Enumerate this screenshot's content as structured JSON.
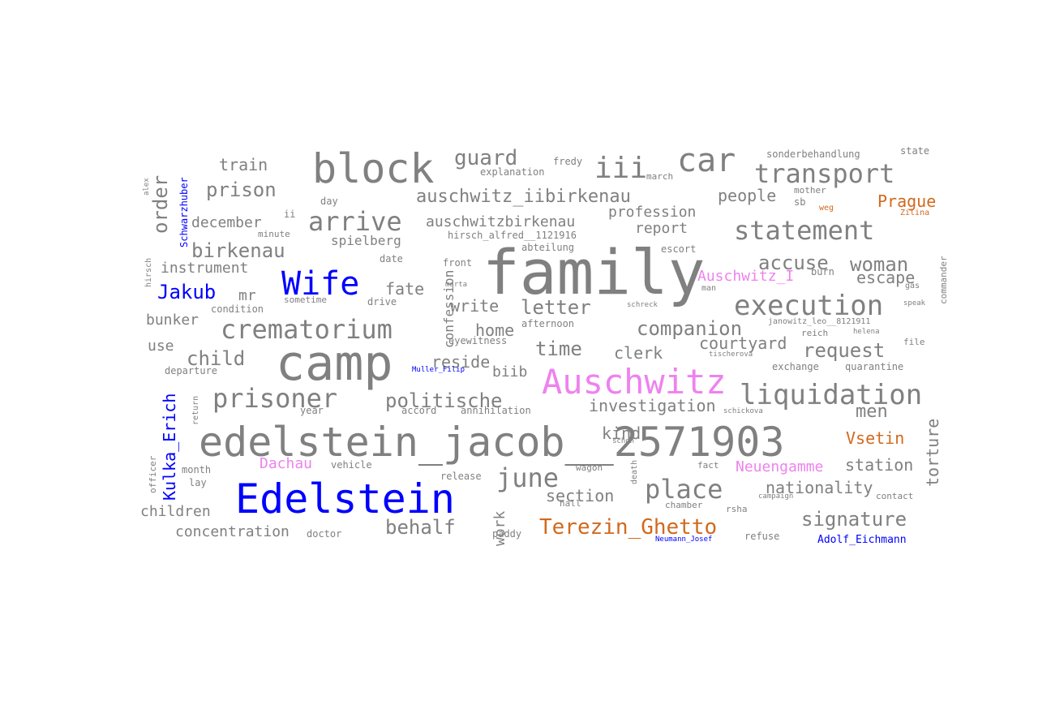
{
  "colors": {
    "gray": "#808080",
    "blue": "#0000ff",
    "magenta": "#ee82ee",
    "orange": "#d2691e"
  },
  "words": [
    {
      "text": "family",
      "color": "gray"
    },
    {
      "text": "camp",
      "color": "gray"
    },
    {
      "text": "edelstein_jacob__2571903",
      "color": "gray"
    },
    {
      "text": "Edelstein",
      "color": "blue"
    },
    {
      "text": "block",
      "color": "gray"
    },
    {
      "text": "Auschwitz",
      "color": "magenta"
    },
    {
      "text": "car",
      "color": "gray"
    },
    {
      "text": "Wife",
      "color": "blue"
    },
    {
      "text": "transport",
      "color": "gray"
    },
    {
      "text": "iii",
      "color": "gray"
    },
    {
      "text": "statement",
      "color": "gray"
    },
    {
      "text": "execution",
      "color": "gray"
    },
    {
      "text": "liquidation",
      "color": "gray"
    },
    {
      "text": "crematorium",
      "color": "gray"
    },
    {
      "text": "arrive",
      "color": "gray"
    },
    {
      "text": "prisoner",
      "color": "gray"
    },
    {
      "text": "place",
      "color": "gray"
    },
    {
      "text": "auschwitz_iibirkenau",
      "color": "gray"
    },
    {
      "text": "politische",
      "color": "gray"
    },
    {
      "text": "june",
      "color": "gray"
    },
    {
      "text": "Terezin_Ghetto",
      "color": "orange"
    },
    {
      "text": "signature",
      "color": "gray"
    },
    {
      "text": "guard",
      "color": "gray"
    },
    {
      "text": "prison",
      "color": "gray"
    },
    {
      "text": "birkenau",
      "color": "gray"
    },
    {
      "text": "Jakub",
      "color": "blue"
    },
    {
      "text": "child",
      "color": "gray"
    },
    {
      "text": "letter",
      "color": "gray"
    },
    {
      "text": "companion",
      "color": "gray"
    },
    {
      "text": "request",
      "color": "gray"
    },
    {
      "text": "accuse",
      "color": "gray"
    },
    {
      "text": "woman",
      "color": "gray"
    },
    {
      "text": "behalf",
      "color": "gray"
    },
    {
      "text": "time",
      "color": "gray"
    },
    {
      "text": "order",
      "color": "gray"
    },
    {
      "text": "Kulka_Erich",
      "color": "blue"
    },
    {
      "text": "men",
      "color": "gray"
    },
    {
      "text": "nationality",
      "color": "gray"
    },
    {
      "text": "station",
      "color": "gray"
    },
    {
      "text": "torture",
      "color": "gray"
    },
    {
      "text": "escape",
      "color": "gray"
    },
    {
      "text": "people",
      "color": "gray"
    },
    {
      "text": "Prague",
      "color": "orange"
    },
    {
      "text": "Vsetin",
      "color": "orange"
    },
    {
      "text": "Auschwitz_I",
      "color": "magenta"
    },
    {
      "text": "Dachau",
      "color": "magenta"
    },
    {
      "text": "Neuengamme",
      "color": "magenta"
    },
    {
      "text": "auschwitzbirkenau",
      "color": "gray"
    },
    {
      "text": "profession",
      "color": "gray"
    },
    {
      "text": "report",
      "color": "gray"
    },
    {
      "text": "train",
      "color": "gray"
    },
    {
      "text": "december",
      "color": "gray"
    },
    {
      "text": "instrument",
      "color": "gray"
    },
    {
      "text": "mr",
      "color": "gray"
    },
    {
      "text": "bunker",
      "color": "gray"
    },
    {
      "text": "use",
      "color": "gray"
    },
    {
      "text": "fate",
      "color": "gray"
    },
    {
      "text": "write",
      "color": "gray"
    },
    {
      "text": "home",
      "color": "gray"
    },
    {
      "text": "reside",
      "color": "gray"
    },
    {
      "text": "biib",
      "color": "gray"
    },
    {
      "text": "clerk",
      "color": "gray"
    },
    {
      "text": "courtyard",
      "color": "gray"
    },
    {
      "text": "investigation",
      "color": "gray"
    },
    {
      "text": "kind",
      "color": "gray"
    },
    {
      "text": "section",
      "color": "gray"
    },
    {
      "text": "children",
      "color": "gray"
    },
    {
      "text": "concentration",
      "color": "gray"
    },
    {
      "text": "confession",
      "color": "gray"
    },
    {
      "text": "spielberg",
      "color": "gray"
    },
    {
      "text": "work",
      "color": "gray"
    },
    {
      "text": "Adolf_Eichmann",
      "color": "blue"
    },
    {
      "text": "Schwarzhuber",
      "color": "blue"
    },
    {
      "text": "Muller_Filip",
      "color": "blue"
    },
    {
      "text": "Neumann_Josef",
      "color": "blue"
    },
    {
      "text": "sonderbehandlung",
      "color": "gray"
    },
    {
      "text": "state",
      "color": "gray"
    },
    {
      "text": "fredy",
      "color": "gray"
    },
    {
      "text": "explanation",
      "color": "gray"
    },
    {
      "text": "march",
      "color": "gray"
    },
    {
      "text": "mother",
      "color": "gray"
    },
    {
      "text": "sb",
      "color": "gray"
    },
    {
      "text": "weg",
      "color": "orange"
    },
    {
      "text": "Zilina",
      "color": "orange"
    },
    {
      "text": "day",
      "color": "gray"
    },
    {
      "text": "ii",
      "color": "gray"
    },
    {
      "text": "minute",
      "color": "gray"
    },
    {
      "text": "hirsch_alfred__1121916",
      "color": "gray"
    },
    {
      "text": "abteilung",
      "color": "gray"
    },
    {
      "text": "escort",
      "color": "gray"
    },
    {
      "text": "date",
      "color": "gray"
    },
    {
      "text": "front",
      "color": "gray"
    },
    {
      "text": "burn",
      "color": "gray"
    },
    {
      "text": "gas",
      "color": "gray"
    },
    {
      "text": "commander",
      "color": "gray"
    },
    {
      "text": "speak",
      "color": "gray"
    },
    {
      "text": "man",
      "color": "gray"
    },
    {
      "text": "marta",
      "color": "gray"
    },
    {
      "text": "condition",
      "color": "gray"
    },
    {
      "text": "sometime",
      "color": "gray"
    },
    {
      "text": "drive",
      "color": "gray"
    },
    {
      "text": "schreck",
      "color": "gray"
    },
    {
      "text": "afternoon",
      "color": "gray"
    },
    {
      "text": "janowitz_leo__8121911",
      "color": "gray"
    },
    {
      "text": "reich",
      "color": "gray"
    },
    {
      "text": "helena",
      "color": "gray"
    },
    {
      "text": "file",
      "color": "gray"
    },
    {
      "text": "eyewitness",
      "color": "gray"
    },
    {
      "text": "tischerova",
      "color": "gray"
    },
    {
      "text": "exchange",
      "color": "gray"
    },
    {
      "text": "quarantine",
      "color": "gray"
    },
    {
      "text": "departure",
      "color": "gray"
    },
    {
      "text": "return",
      "color": "gray"
    },
    {
      "text": "year",
      "color": "gray"
    },
    {
      "text": "accord",
      "color": "gray"
    },
    {
      "text": "annihilation",
      "color": "gray"
    },
    {
      "text": "schickova",
      "color": "gray"
    },
    {
      "text": "officer",
      "color": "gray"
    },
    {
      "text": "month",
      "color": "gray"
    },
    {
      "text": "lay",
      "color": "gray"
    },
    {
      "text": "vehicle",
      "color": "gray"
    },
    {
      "text": "release",
      "color": "gray"
    },
    {
      "text": "schon",
      "color": "gray"
    },
    {
      "text": "wagon",
      "color": "gray"
    },
    {
      "text": "death",
      "color": "gray"
    },
    {
      "text": "fact",
      "color": "gray"
    },
    {
      "text": "contact",
      "color": "gray"
    },
    {
      "text": "hall",
      "color": "gray"
    },
    {
      "text": "chamber",
      "color": "gray"
    },
    {
      "text": "rsha",
      "color": "gray"
    },
    {
      "text": "campaign",
      "color": "gray"
    },
    {
      "text": "doctor",
      "color": "gray"
    },
    {
      "text": "paddy",
      "color": "gray"
    },
    {
      "text": "refuse",
      "color": "gray"
    },
    {
      "text": "alex",
      "color": "gray"
    },
    {
      "text": "hirsch",
      "color": "gray"
    }
  ]
}
